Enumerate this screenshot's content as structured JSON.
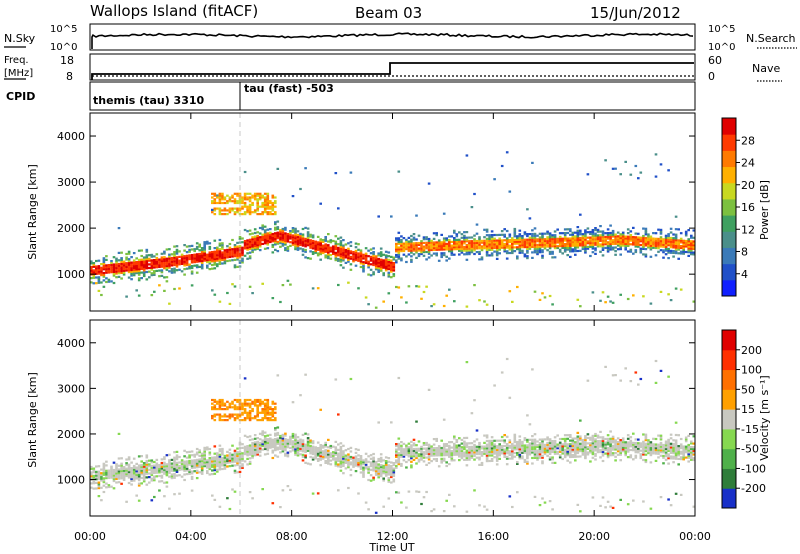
{
  "header": {
    "station": "Wallops Island (fitACF)",
    "beam": "Beam 03",
    "date": "15/Jun/2012"
  },
  "panels": {
    "nsky": {
      "label": "N.Sky",
      "ticks": [
        "10^5",
        "10^0"
      ],
      "right_label": "N.Search",
      "right_ticks": [
        "10^5",
        "10^0"
      ]
    },
    "freq": {
      "label_line1": "Freq.",
      "label_line2": "[MHz]",
      "ticks": [
        "18",
        "8"
      ],
      "right_label": "Nave",
      "right_ticks": [
        "60",
        "0"
      ]
    },
    "cpid": {
      "label": "CPID",
      "modes": [
        {
          "name": "themis (tau) 3310",
          "start_hour": 0
        },
        {
          "name": "tau (fast) -503",
          "start_hour": 6
        }
      ]
    }
  },
  "chart_data": [
    {
      "type": "heatmap",
      "quantity": "Power",
      "ylabel": "Slant Range [km]",
      "xlabel": "Time UT",
      "x_ticks": [
        "00:00",
        "04:00",
        "08:00",
        "12:00",
        "16:00",
        "20:00",
        "00:00"
      ],
      "xlim_hours": [
        0,
        24
      ],
      "y_ticks": [
        1000,
        2000,
        3000,
        4000
      ],
      "ylim_km": [
        200,
        4500
      ],
      "colorbar": {
        "label": "Power [dB]",
        "ticks": [
          4,
          8,
          12,
          16,
          20,
          24,
          28
        ],
        "range": [
          0,
          32
        ],
        "colors": [
          "#1020ff",
          "#2050c8",
          "#3a7ab8",
          "#4a8f8a",
          "#3fa060",
          "#7cc040",
          "#c8d820",
          "#ffb000",
          "#ff7a00",
          "#ff3a00",
          "#e00000"
        ]
      },
      "features": [
        {
          "desc": "main band",
          "start_hour": 0,
          "end_hour": 12,
          "range_km": [
            1000,
            1900
          ]
        },
        {
          "desc": "main band",
          "start_hour": 12,
          "end_hour": 24,
          "range_km": [
            1450,
            1900
          ]
        },
        {
          "desc": "patch",
          "start_hour": 4.8,
          "end_hour": 7.3,
          "range_km": [
            2300,
            2700
          ]
        }
      ]
    },
    {
      "type": "heatmap",
      "quantity": "Velocity",
      "ylabel": "Slant Range [km]",
      "xlabel": "Time UT",
      "x_ticks": [
        "00:00",
        "04:00",
        "08:00",
        "12:00",
        "16:00",
        "20:00",
        "00:00"
      ],
      "xlim_hours": [
        0,
        24
      ],
      "y_ticks": [
        1000,
        2000,
        3000,
        4000
      ],
      "ylim_km": [
        200,
        4500
      ],
      "colorbar": {
        "label": "Velocity [m s⁻¹]",
        "ticks": [
          200,
          100,
          50,
          15,
          -15,
          -50,
          -100,
          -200
        ],
        "colors": [
          "#1830c8",
          "#2f7d3a",
          "#4fb04a",
          "#86d850",
          "#c8c8c0",
          "#ffa000",
          "#ff7000",
          "#ff3000",
          "#e00000"
        ]
      }
    }
  ]
}
